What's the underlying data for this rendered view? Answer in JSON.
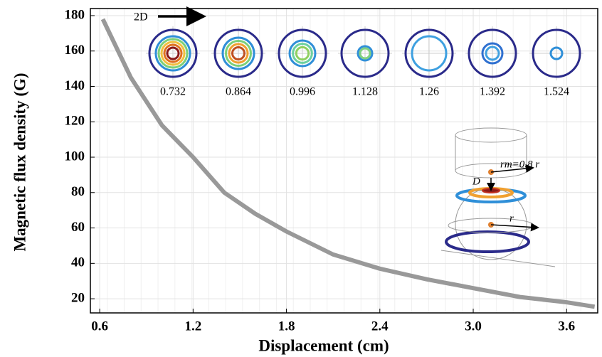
{
  "chart_data": {
    "type": "line",
    "x_label": "Displacement (cm)",
    "y_label": "Magnetic flux density (G)",
    "xlim": [
      0.54,
      3.8
    ],
    "ylim": [
      12,
      184
    ],
    "xticks": [
      0.6,
      1.2,
      1.8,
      2.4,
      {
        "value": 3,
        "label": "3.0"
      },
      3.6
    ],
    "yticks": [
      20,
      40,
      60,
      80,
      100,
      120,
      140,
      160,
      180
    ],
    "grid": true,
    "series": [
      {
        "color": "#999999",
        "x": [
          0.62,
          0.8,
          1.0,
          1.2,
          1.4,
          1.6,
          1.8,
          2.1,
          2.4,
          2.7,
          3.0,
          3.3,
          3.6,
          3.78
        ],
        "values": [
          178,
          145,
          118,
          100,
          80,
          68,
          58,
          45,
          37,
          31,
          26,
          21,
          18,
          15.5
        ]
      }
    ],
    "annotations": {
      "arrow_label": "2D",
      "rm_label": "rm=0.8 r",
      "d_label": "D",
      "r_label": "r",
      "inset_labels": [
        "0.732",
        "0.864",
        "0.996",
        "1.128",
        "1.26",
        "1.392",
        "1.524"
      ]
    }
  }
}
